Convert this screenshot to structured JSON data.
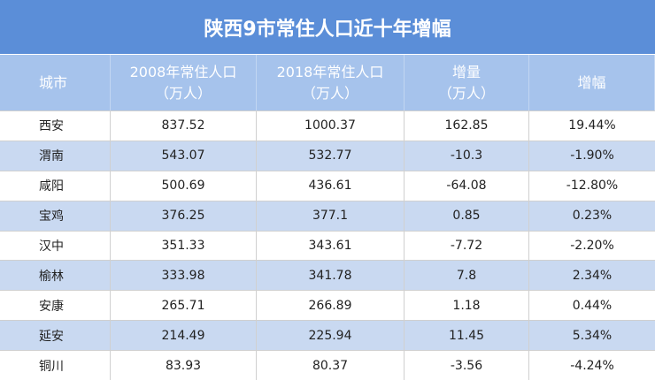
{
  "header": {
    "title": "陕西9市常住人口近十年增幅"
  },
  "table": {
    "columns": [
      [
        "城市"
      ],
      [
        "2008年常住人口",
        "（万人）"
      ],
      [
        "2018年常住人口",
        "（万人）"
      ],
      [
        "增量",
        "（万人）"
      ],
      [
        "增幅"
      ]
    ],
    "rows": [
      [
        "西安",
        "837.52",
        "1000.37",
        "162.85",
        "19.44%"
      ],
      [
        "渭南",
        "543.07",
        "532.77",
        "-10.3",
        "-1.90%"
      ],
      [
        "咸阳",
        "500.69",
        "436.61",
        "-64.08",
        "-12.80%"
      ],
      [
        "宝鸡",
        "376.25",
        "377.1",
        "0.85",
        "0.23%"
      ],
      [
        "汉中",
        "351.33",
        "343.61",
        "-7.72",
        "-2.20%"
      ],
      [
        "榆林",
        "333.98",
        "341.78",
        "7.8",
        "2.34%"
      ],
      [
        "安康",
        "265.71",
        "266.89",
        "1.18",
        "0.44%"
      ],
      [
        "延安",
        "214.49",
        "225.94",
        "11.45",
        "5.34%"
      ],
      [
        "铜川",
        "83.93",
        "80.37",
        "-3.56",
        "-4.24%"
      ]
    ]
  }
}
